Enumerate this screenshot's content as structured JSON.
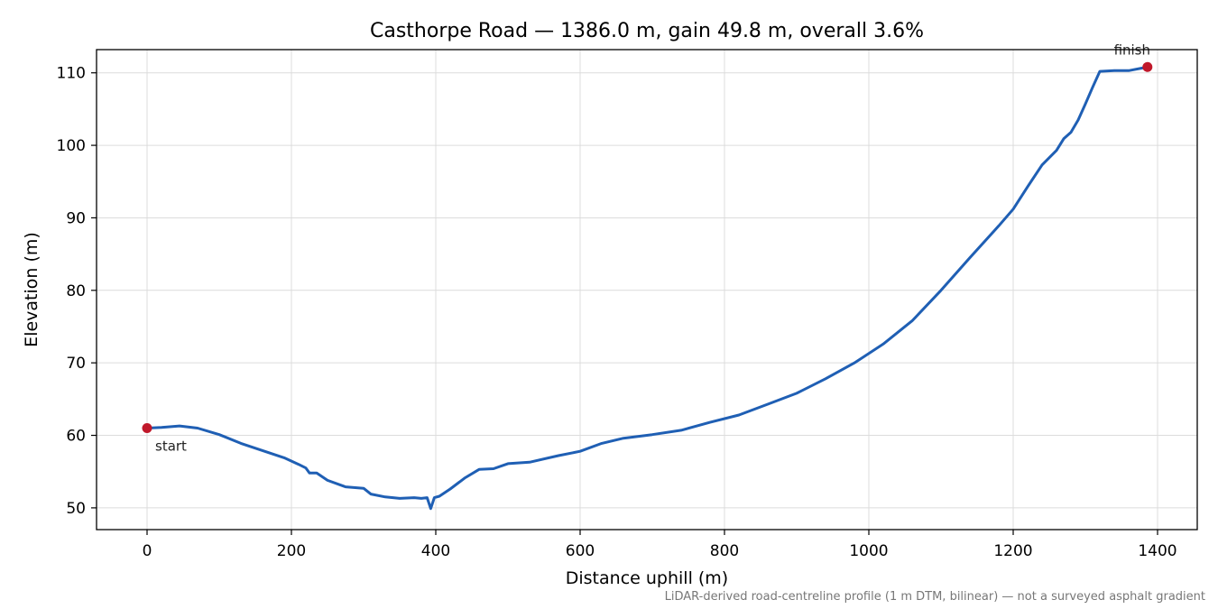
{
  "chart_data": {
    "type": "line",
    "title": "Casthorpe Road — 1386.0 m, gain 49.8 m, overall 3.6%",
    "xlabel": "Distance uphill (m)",
    "ylabel": "Elevation (m)",
    "xlim": [
      -70,
      1455
    ],
    "ylim": [
      47,
      113.2
    ],
    "xticks": [
      "0",
      "200",
      "400",
      "600",
      "800",
      "1000",
      "1200",
      "1400"
    ],
    "xtick_values": [
      0,
      200,
      400,
      600,
      800,
      1000,
      1200,
      1400
    ],
    "yticks": [
      "50",
      "60",
      "70",
      "80",
      "90",
      "100",
      "110"
    ],
    "ytick_values": [
      50,
      60,
      70,
      80,
      90,
      100,
      110
    ],
    "grid": true,
    "line_color": "#1f5fb4",
    "marker_color": "#c0182a",
    "series": [
      {
        "x": [
          0,
          20,
          45,
          70,
          100,
          130,
          160,
          190,
          210,
          220,
          225,
          235,
          250,
          275,
          300,
          310,
          330,
          350,
          370,
          380,
          388,
          393,
          398,
          405,
          420,
          440,
          460,
          480,
          500,
          530,
          570,
          600,
          630,
          660,
          700,
          740,
          780,
          820,
          860,
          900,
          940,
          980,
          1020,
          1060,
          1100,
          1140,
          1180,
          1200,
          1220,
          1240,
          1260,
          1270,
          1280,
          1290,
          1300,
          1310,
          1320,
          1340,
          1360,
          1386
        ],
        "y": [
          61.0,
          61.1,
          61.3,
          61.0,
          60.1,
          58.9,
          57.9,
          56.9,
          56.0,
          55.5,
          54.8,
          54.8,
          53.8,
          52.9,
          52.7,
          51.9,
          51.5,
          51.3,
          51.4,
          51.3,
          51.4,
          49.9,
          51.4,
          51.6,
          52.6,
          54.1,
          55.3,
          55.4,
          56.1,
          56.3,
          57.2,
          57.8,
          58.9,
          59.6,
          60.1,
          60.7,
          61.8,
          62.8,
          64.3,
          65.8,
          67.8,
          70.0,
          72.6,
          75.8,
          80.0,
          84.5,
          88.9,
          91.2,
          94.3,
          97.3,
          99.3,
          100.9,
          101.8,
          103.5,
          105.7,
          108.0,
          110.2,
          110.3,
          110.3,
          110.8
        ]
      }
    ],
    "annotations": [
      {
        "text": "start",
        "x": 0,
        "y": 61.0
      },
      {
        "text": "finish",
        "x": 1386,
        "y": 110.8
      }
    ],
    "footnote": "LiDAR-derived road-centreline profile (1 m DTM, bilinear) — not a surveyed asphalt gradient"
  }
}
